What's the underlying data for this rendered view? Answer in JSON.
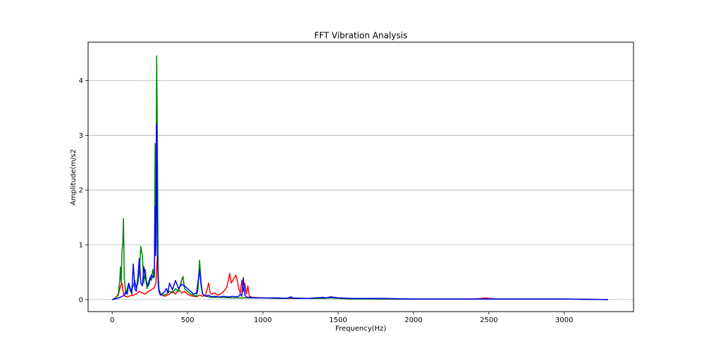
{
  "chart_data": {
    "type": "line",
    "title": "FFT Vibration Analysis",
    "xlabel": "Frequency(Hz)",
    "ylabel": "Amplitude(m/s2",
    "xlim": [
      -160,
      3460
    ],
    "ylim": [
      -0.22,
      4.7
    ],
    "xticks": [
      0,
      500,
      1000,
      1500,
      2000,
      2500,
      3000
    ],
    "yticks": [
      0,
      1,
      2,
      3,
      4
    ],
    "grid": "horizontal",
    "legend": "none",
    "series": [
      {
        "color": "#ff0000",
        "x": [
          0,
          20,
          40,
          55,
          65,
          75,
          85,
          100,
          120,
          140,
          160,
          180,
          200,
          220,
          240,
          260,
          280,
          290,
          300,
          310,
          330,
          350,
          380,
          400,
          420,
          440,
          460,
          480,
          500,
          520,
          540,
          560,
          580,
          600,
          620,
          640,
          650,
          660,
          680,
          700,
          720,
          740,
          760,
          780,
          790,
          800,
          810,
          820,
          830,
          840,
          850,
          860,
          870,
          880,
          890,
          900,
          910,
          930,
          1000,
          1100,
          1200,
          1300,
          1400,
          1450,
          1500,
          1600,
          1800,
          2000,
          2200,
          2400,
          2450,
          2480,
          2500,
          2550,
          2700,
          3000,
          3290
        ],
        "y": [
          0.0,
          0.03,
          0.08,
          0.25,
          0.3,
          0.1,
          0.06,
          0.05,
          0.07,
          0.08,
          0.1,
          0.15,
          0.12,
          0.1,
          0.15,
          0.18,
          0.22,
          0.3,
          0.8,
          0.15,
          0.08,
          0.06,
          0.1,
          0.15,
          0.1,
          0.18,
          0.12,
          0.15,
          0.1,
          0.07,
          0.06,
          0.05,
          0.08,
          0.06,
          0.08,
          0.3,
          0.12,
          0.1,
          0.12,
          0.08,
          0.1,
          0.15,
          0.22,
          0.48,
          0.3,
          0.35,
          0.4,
          0.45,
          0.35,
          0.2,
          0.12,
          0.35,
          0.15,
          0.3,
          0.1,
          0.25,
          0.06,
          0.04,
          0.03,
          0.02,
          0.02,
          0.02,
          0.02,
          0.03,
          0.02,
          0.02,
          0.01,
          0.01,
          0.01,
          0.01,
          0.02,
          0.03,
          0.02,
          0.01,
          0.01,
          0.01,
          0.0
        ]
      },
      {
        "color": "#008000",
        "x": [
          0,
          20,
          40,
          50,
          55,
          60,
          65,
          70,
          75,
          80,
          90,
          100,
          110,
          120,
          130,
          140,
          150,
          160,
          170,
          180,
          190,
          200,
          210,
          220,
          230,
          240,
          250,
          260,
          270,
          280,
          285,
          290,
          295,
          300,
          305,
          310,
          320,
          340,
          360,
          380,
          400,
          420,
          440,
          460,
          470,
          480,
          500,
          520,
          540,
          560,
          570,
          580,
          590,
          600,
          620,
          640,
          660,
          700,
          800,
          900,
          1000,
          1100,
          1200,
          1300,
          1400,
          1450,
          1500,
          1600,
          2000,
          2500,
          3000,
          3290
        ],
        "y": [
          0.0,
          0.02,
          0.1,
          0.35,
          0.6,
          0.3,
          0.9,
          1.0,
          1.48,
          0.4,
          0.1,
          0.2,
          0.3,
          0.15,
          0.2,
          0.25,
          0.35,
          0.2,
          0.3,
          0.5,
          0.97,
          0.8,
          0.3,
          0.55,
          0.2,
          0.3,
          0.4,
          0.35,
          0.55,
          0.4,
          2.85,
          1.5,
          4.45,
          2.8,
          0.5,
          0.2,
          0.1,
          0.08,
          0.1,
          0.15,
          0.12,
          0.2,
          0.15,
          0.35,
          0.42,
          0.2,
          0.15,
          0.1,
          0.08,
          0.06,
          0.2,
          0.72,
          0.3,
          0.1,
          0.06,
          0.05,
          0.04,
          0.04,
          0.03,
          0.03,
          0.03,
          0.02,
          0.03,
          0.02,
          0.02,
          0.03,
          0.02,
          0.01,
          0.01,
          0.01,
          0.01,
          0.0
        ]
      },
      {
        "color": "#0000ff",
        "x": [
          0,
          20,
          40,
          60,
          80,
          90,
          100,
          110,
          120,
          130,
          140,
          150,
          160,
          170,
          180,
          190,
          200,
          210,
          220,
          230,
          240,
          250,
          260,
          270,
          280,
          285,
          290,
          295,
          300,
          305,
          310,
          320,
          330,
          340,
          350,
          360,
          370,
          380,
          400,
          420,
          440,
          460,
          480,
          500,
          520,
          540,
          560,
          580,
          590,
          600,
          620,
          640,
          660,
          680,
          700,
          720,
          740,
          760,
          780,
          800,
          820,
          840,
          850,
          860,
          870,
          880,
          890,
          900,
          950,
          1000,
          1100,
          1150,
          1190,
          1200,
          1300,
          1400,
          1420,
          1450,
          1500,
          1600,
          1800,
          2000,
          2500,
          3000,
          3290
        ],
        "y": [
          0.0,
          0.01,
          0.03,
          0.05,
          0.08,
          0.15,
          0.1,
          0.3,
          0.2,
          0.1,
          0.65,
          0.2,
          0.15,
          0.4,
          0.75,
          0.3,
          0.25,
          0.6,
          0.4,
          0.3,
          0.25,
          0.35,
          0.45,
          0.4,
          0.5,
          1.7,
          0.8,
          3.2,
          1.0,
          0.3,
          0.15,
          0.08,
          0.1,
          0.12,
          0.15,
          0.2,
          0.12,
          0.3,
          0.18,
          0.35,
          0.2,
          0.28,
          0.25,
          0.2,
          0.15,
          0.1,
          0.12,
          0.55,
          0.25,
          0.1,
          0.06,
          0.08,
          0.05,
          0.06,
          0.05,
          0.05,
          0.06,
          0.05,
          0.05,
          0.06,
          0.05,
          0.06,
          0.1,
          0.06,
          0.4,
          0.08,
          0.05,
          0.04,
          0.03,
          0.03,
          0.03,
          0.02,
          0.05,
          0.02,
          0.02,
          0.04,
          0.03,
          0.05,
          0.03,
          0.02,
          0.02,
          0.01,
          0.01,
          0.01,
          0.0
        ]
      }
    ]
  }
}
